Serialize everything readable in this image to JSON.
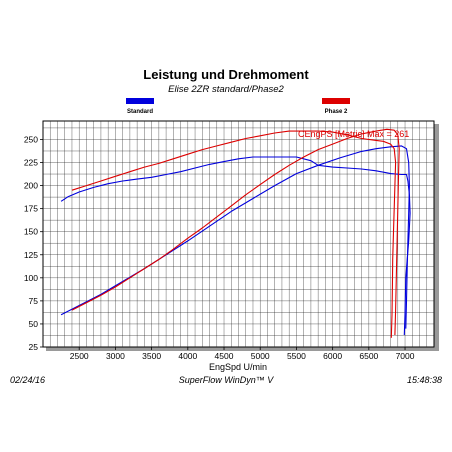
{
  "chart_data": {
    "type": "line",
    "title": "Leistung und Drehmoment",
    "subtitle": "Elise 2ZR standard/Phase2",
    "xlabel": "EngSpd U/min",
    "ylabel": "",
    "xlim": [
      2000,
      7400
    ],
    "ylim": [
      25,
      270
    ],
    "x_ticks": [
      2500,
      3000,
      3500,
      4000,
      4500,
      5000,
      5500,
      6000,
      6500,
      7000
    ],
    "y_ticks": [
      25,
      50,
      75,
      100,
      125,
      150,
      175,
      200,
      225,
      250
    ],
    "x_minor_step": 100,
    "y_minor_step": 12.5,
    "grid": true,
    "legend": "top",
    "legend_entries": [
      {
        "name": "Standard",
        "color": "#0000dd"
      },
      {
        "name": "Phase 2",
        "color": "#dd0000"
      }
    ],
    "annotation": "CEngPS [Metric] Max = 261",
    "annotation_color": "#dd0000",
    "series": [
      {
        "name": "Standard",
        "label": "torque",
        "color": "#0000dd",
        "x": [
          2250,
          2350,
          2500,
          2700,
          2900,
          3100,
          3300,
          3500,
          3700,
          3900,
          4100,
          4300,
          4500,
          4700,
          4900,
          5100,
          5300,
          5500,
          5700,
          5800,
          5900,
          6000,
          6200,
          6400,
          6600,
          6800,
          6950,
          7020,
          7040,
          7060,
          7070,
          7060,
          7050,
          7030,
          7010,
          7000,
          6990
        ],
        "y": [
          183,
          188,
          193,
          198,
          202,
          205,
          207,
          209,
          212,
          215,
          219,
          223,
          226,
          229,
          231,
          231,
          231,
          231,
          227,
          222,
          221,
          220,
          219,
          218,
          216,
          213,
          212,
          212,
          205,
          190,
          170,
          155,
          140,
          120,
          100,
          60,
          38
        ]
      },
      {
        "name": "Standard",
        "label": "power",
        "color": "#0000dd",
        "x": [
          2250,
          2500,
          2800,
          3100,
          3400,
          3700,
          4000,
          4300,
          4600,
          4900,
          5200,
          5500,
          5800,
          6100,
          6400,
          6600,
          6800,
          6950,
          7020,
          7050,
          7060,
          7050,
          7040,
          7030,
          7020,
          7010
        ],
        "y": [
          60,
          70,
          82,
          96,
          110,
          125,
          140,
          156,
          172,
          186,
          200,
          213,
          222,
          230,
          237,
          240,
          242,
          243,
          240,
          225,
          200,
          170,
          140,
          110,
          75,
          45
        ]
      },
      {
        "name": "Phase 2",
        "label": "torque",
        "color": "#dd0000",
        "x": [
          2400,
          2600,
          2800,
          3000,
          3200,
          3400,
          3600,
          3800,
          4000,
          4200,
          4400,
          4600,
          4800,
          5000,
          5200,
          5400,
          5600,
          5800,
          6000,
          6200,
          6400,
          6600,
          6700,
          6800,
          6850,
          6870,
          6860,
          6850,
          6840,
          6830,
          6825,
          6820,
          6810
        ],
        "y": [
          195,
          200,
          205,
          210,
          215,
          220,
          224,
          229,
          234,
          239,
          243,
          247,
          251,
          254,
          257,
          259,
          259,
          259,
          258,
          255,
          251,
          249,
          248,
          245,
          240,
          225,
          200,
          175,
          150,
          120,
          90,
          60,
          35
        ]
      },
      {
        "name": "Phase 2",
        "label": "power",
        "color": "#dd0000",
        "x": [
          2400,
          2600,
          2800,
          3000,
          3200,
          3400,
          3600,
          3800,
          4000,
          4200,
          4400,
          4600,
          4800,
          5000,
          5200,
          5400,
          5600,
          5800,
          6000,
          6200,
          6400,
          6600,
          6750,
          6850,
          6900,
          6920,
          6910,
          6900,
          6890,
          6880,
          6870,
          6860
        ],
        "y": [
          65,
          73,
          81,
          90,
          100,
          110,
          120,
          131,
          143,
          154,
          166,
          178,
          190,
          201,
          212,
          222,
          231,
          239,
          245,
          251,
          256,
          259,
          261,
          260,
          255,
          240,
          210,
          175,
          140,
          100,
          65,
          38
        ]
      }
    ]
  },
  "footer": {
    "date": "02/24/16",
    "software": "SuperFlow WinDyn™ V",
    "time": "15:48:38"
  }
}
